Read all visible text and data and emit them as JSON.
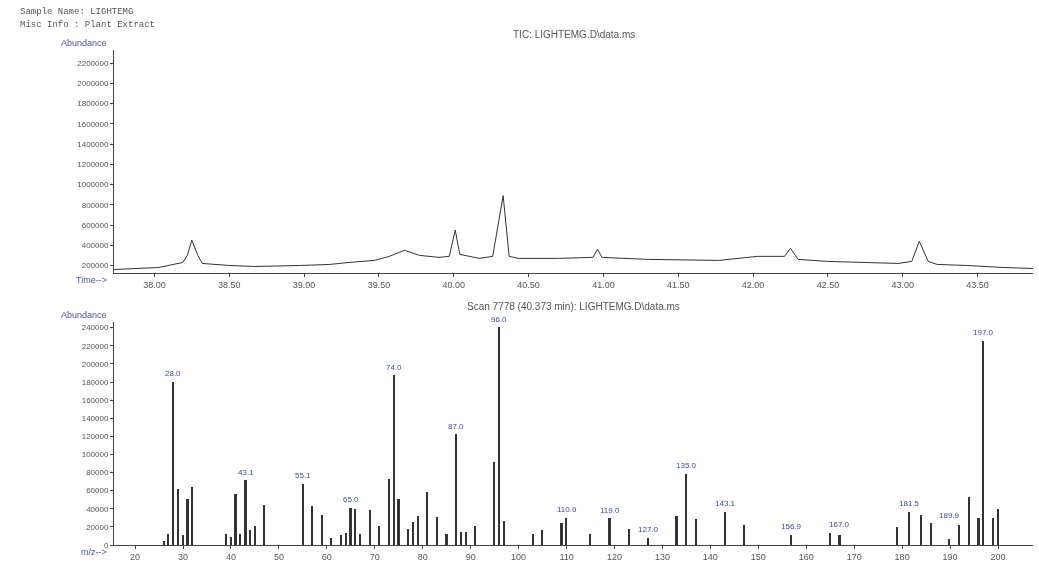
{
  "chart_data": [
    {
      "type": "line",
      "title": "TIC: LIGHTEMG.D\\data.ms",
      "xlabel": "Time-->",
      "ylabel": "Abundance",
      "annotations": [
        "Sample Name: LIGHTEMG",
        "Misc Info : Plant Extract"
      ],
      "x": [
        37.73,
        38.03,
        38.19,
        38.22,
        38.25,
        38.29,
        38.32,
        38.5,
        38.67,
        38.97,
        39.17,
        39.3,
        39.47,
        39.57,
        39.67,
        39.77,
        39.9,
        39.97,
        40.01,
        40.04,
        40.17,
        40.26,
        40.33,
        40.37,
        40.43,
        40.7,
        40.93,
        40.96,
        40.99,
        41.3,
        41.77,
        42.03,
        42.21,
        42.25,
        42.3,
        42.5,
        42.97,
        43.06,
        43.11,
        43.17,
        43.23,
        43.43,
        43.67,
        43.87
      ],
      "series": [
        {
          "color": "#333333",
          "values": [
            160000,
            180000,
            230000,
            300000,
            450000,
            300000,
            220000,
            200000,
            190000,
            200000,
            210000,
            230000,
            250000,
            290000,
            350000,
            300000,
            280000,
            290000,
            550000,
            310000,
            270000,
            290000,
            890000,
            290000,
            270000,
            270000,
            280000,
            360000,
            280000,
            260000,
            250000,
            290000,
            290000,
            370000,
            260000,
            240000,
            220000,
            240000,
            440000,
            240000,
            210000,
            200000,
            180000,
            170000
          ]
        }
      ],
      "xlim": [
        37.73,
        43.87
      ],
      "ylim": [
        128000,
        2330000
      ],
      "xticks": [
        {
          "value": 38,
          "label": "38.00"
        },
        {
          "value": 38.5,
          "label": "38.50"
        },
        {
          "value": 39,
          "label": "39.00"
        },
        {
          "value": 39.5,
          "label": "39.50"
        },
        {
          "value": 40,
          "label": "40.00"
        },
        {
          "value": 40.5,
          "label": "40.50"
        },
        {
          "value": 41,
          "label": "41.00"
        },
        {
          "value": 41.5,
          "label": "41.50"
        },
        {
          "value": 42,
          "label": "42.00"
        },
        {
          "value": 42.5,
          "label": "42.50"
        },
        {
          "value": 43,
          "label": "43.00"
        },
        {
          "value": 43.5,
          "label": "43.50"
        }
      ],
      "yticks": [
        200000,
        400000,
        600000,
        800000,
        1000000,
        1200000,
        1400000,
        1600000,
        1800000,
        2000000,
        2200000
      ]
    },
    {
      "type": "bar",
      "title": "Scan 7778 (40.373 min): LIGHTEMG.D\\data.ms",
      "xlabel": "m/z-->",
      "ylabel": "Abundance",
      "x": [
        26,
        27,
        28.0,
        29,
        30,
        31,
        32,
        39,
        40,
        41,
        42,
        43.1,
        44,
        45,
        47,
        55.1,
        57,
        59,
        61,
        63,
        64,
        65.0,
        66,
        67,
        69,
        71,
        73,
        74.0,
        75,
        77,
        78,
        79,
        81,
        83,
        85,
        87.0,
        88,
        89,
        91,
        95,
        96.0,
        97,
        103,
        105,
        109,
        110.0,
        115,
        119.0,
        123,
        127.0,
        133,
        135.0,
        137,
        143.1,
        147,
        156.9,
        165,
        167.0,
        179,
        181.5,
        184,
        186,
        189.9,
        192,
        194,
        196,
        197.0,
        199,
        200
      ],
      "series": [
        {
          "color": "#333333",
          "values": [
            4000,
            12000,
            180000,
            62000,
            11000,
            50000,
            64000,
            12000,
            9000,
            56000,
            12000,
            71000,
            16000,
            21000,
            44000,
            67000,
            43000,
            33000,
            8000,
            11000,
            13000,
            41000,
            40000,
            12000,
            38000,
            21000,
            73000,
            187000,
            50000,
            17000,
            25000,
            32000,
            58000,
            31000,
            12000,
            122000,
            14000,
            14000,
            21000,
            91000,
            240000,
            26000,
            12000,
            16000,
            24000,
            30000,
            12000,
            29000,
            17000,
            8000,
            32000,
            78000,
            28000,
            36000,
            22000,
            11000,
            13000,
            11000,
            20000,
            36000,
            33000,
            24000,
            6000,
            22000,
            53000,
            30000,
            225000,
            30000,
            39000
          ]
        }
      ],
      "annotations": [
        {
          "text": "28.0",
          "x": 28.0,
          "y": 180000
        },
        {
          "text": "43.1",
          "x": 43.1,
          "y": 71000
        },
        {
          "text": "55.1",
          "x": 55.1,
          "y": 67000
        },
        {
          "text": "65.0",
          "x": 65.0,
          "y": 41000
        },
        {
          "text": "74.0",
          "x": 74.0,
          "y": 187000
        },
        {
          "text": "87.0",
          "x": 87.0,
          "y": 122000
        },
        {
          "text": "96.0",
          "x": 96.0,
          "y": 240000
        },
        {
          "text": "110.0",
          "x": 110.0,
          "y": 30000
        },
        {
          "text": "119.0",
          "x": 119.0,
          "y": 29000
        },
        {
          "text": "127.0",
          "x": 127.0,
          "y": 8000
        },
        {
          "text": "135.0",
          "x": 135.0,
          "y": 78000
        },
        {
          "text": "143.1",
          "x": 143.1,
          "y": 36000
        },
        {
          "text": "156.9",
          "x": 156.9,
          "y": 11000
        },
        {
          "text": "167.0",
          "x": 167.0,
          "y": 11000
        },
        {
          "text": "181.5",
          "x": 181.5,
          "y": 36000
        },
        {
          "text": "189.9",
          "x": 189.9,
          "y": 6000
        },
        {
          "text": "197.0",
          "x": 197.0,
          "y": 225000
        }
      ],
      "xlim": [
        15.6,
        207.3
      ],
      "ylim": [
        0,
        246000
      ],
      "xticks": [
        20,
        30,
        40,
        50,
        60,
        70,
        80,
        90,
        100,
        110,
        120,
        130,
        140,
        150,
        160,
        170,
        180,
        190,
        200
      ],
      "yticks": [
        0,
        20000,
        40000,
        60000,
        80000,
        100000,
        120000,
        140000,
        160000,
        180000,
        200000,
        220000,
        240000
      ]
    }
  ]
}
